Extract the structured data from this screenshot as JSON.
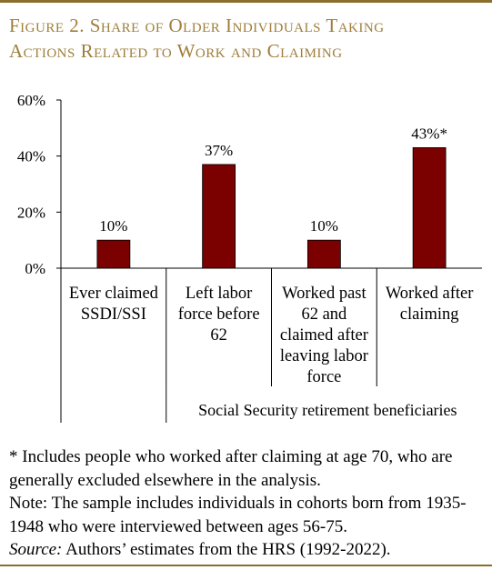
{
  "figure": {
    "title_line1": "Figure 2. Share of Older Individuals Taking",
    "title_line2": "Actions Related to Work and Claiming"
  },
  "chart_data": {
    "type": "bar",
    "categories": [
      [
        "Ever claimed",
        "SSDI/SSI"
      ],
      [
        "Left labor",
        "force before",
        "62"
      ],
      [
        "Worked past",
        "62 and",
        "claimed after",
        "leaving labor",
        "force"
      ],
      [
        "Worked after",
        "claiming"
      ]
    ],
    "values": [
      10,
      37,
      10,
      43
    ],
    "data_labels": [
      "10%",
      "37%",
      "10%",
      "43%*"
    ],
    "yticks": [
      "0%",
      "20%",
      "40%",
      "60%"
    ],
    "ylim": [
      0,
      60
    ],
    "group_label": "Social Security retirement beneficiaries",
    "bar_color": "#7b0000",
    "grid": false
  },
  "notes": {
    "footnote": "* Includes people who worked after claiming at age 70, who are generally excluded elsewhere in the analysis.",
    "note": "Note: The sample includes individuals in cohorts born from 1935-1948 who were interviewed between ages 56-75.",
    "source_label": "Source:",
    "source_text": " Authors’ estimates from the HRS (1992-2022)."
  },
  "colors": {
    "accent": "#a07e3a",
    "rule": "#8c6d2c"
  }
}
